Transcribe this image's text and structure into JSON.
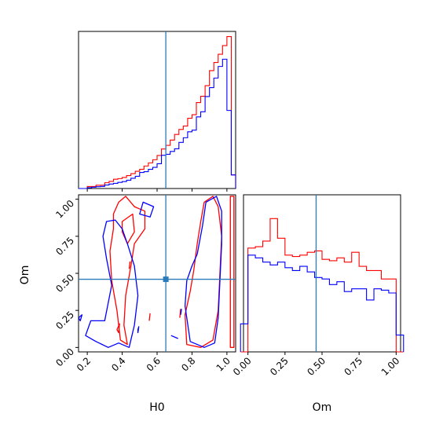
{
  "chart_data": {
    "type": "corner",
    "parameters": [
      "H0",
      "Om"
    ],
    "truth": {
      "H0": 0.65,
      "Om": 0.46
    },
    "colors": {
      "series_a": "#ff0000",
      "series_b": "#0000ff",
      "truth": "#2b7bba"
    },
    "axes": {
      "H0": {
        "label": "H0",
        "range": [
          0.15,
          1.05
        ],
        "ticks": [
          "0.2",
          "0.4",
          "0.6",
          "0.8",
          "1.0"
        ],
        "tick_values": [
          0.2,
          0.4,
          0.6,
          0.8,
          1.0
        ]
      },
      "Om": {
        "label": "Om",
        "range": [
          -0.03,
          1.03
        ],
        "ticks": [
          "0.00",
          "0.25",
          "0.50",
          "0.75",
          "1.00"
        ],
        "tick_values": [
          0.0,
          0.25,
          0.5,
          0.75,
          1.0
        ]
      }
    },
    "hist_H0": {
      "bin_edges": [
        0.15,
        0.175,
        0.2,
        0.225,
        0.25,
        0.275,
        0.3,
        0.325,
        0.35,
        0.375,
        0.4,
        0.425,
        0.45,
        0.475,
        0.5,
        0.525,
        0.55,
        0.575,
        0.6,
        0.625,
        0.65,
        0.675,
        0.7,
        0.725,
        0.75,
        0.775,
        0.8,
        0.825,
        0.85,
        0.875,
        0.9,
        0.925,
        0.95,
        0.975,
        1.0,
        1.025,
        1.05
      ],
      "series": [
        {
          "values": [
            0,
            0,
            0.012,
            0.012,
            0.02,
            0.02,
            0.035,
            0.043,
            0.056,
            0.06,
            0.067,
            0.078,
            0.09,
            0.104,
            0.116,
            0.136,
            0.155,
            0.174,
            0.2,
            0.239,
            0.261,
            0.293,
            0.327,
            0.357,
            0.378,
            0.425,
            0.446,
            0.52,
            0.558,
            0.622,
            0.713,
            0.762,
            0.812,
            0.864,
            0.919,
            0.082
          ]
        },
        {
          "values": [
            0,
            0,
            0.005,
            0.008,
            0.011,
            0.013,
            0.021,
            0.027,
            0.031,
            0.037,
            0.042,
            0.05,
            0.062,
            0.074,
            0.097,
            0.102,
            0.116,
            0.128,
            0.15,
            0.201,
            0.207,
            0.224,
            0.24,
            0.279,
            0.307,
            0.343,
            0.353,
            0.433,
            0.464,
            0.556,
            0.61,
            0.668,
            0.738,
            0.782,
            0.472,
            0.082
          ]
        }
      ]
    },
    "hist_Om": {
      "bin_edges": [
        -0.05,
        0.0,
        0.05,
        0.1,
        0.15,
        0.2,
        0.25,
        0.3,
        0.35,
        0.4,
        0.45,
        0.5,
        0.55,
        0.6,
        0.65,
        0.7,
        0.75,
        0.8,
        0.85,
        0.9,
        0.95,
        1.0,
        1.05
      ],
      "series": [
        {
          "values": [
            0,
            0.74,
            0.75,
            0.79,
            0.95,
            0.81,
            0.69,
            0.68,
            0.69,
            0.71,
            0.72,
            0.66,
            0.65,
            0.67,
            0.64,
            0.71,
            0.61,
            0.58,
            0.58,
            0.52,
            0.52,
            0
          ]
        },
        {
          "values": [
            0.2,
            0.69,
            0.67,
            0.64,
            0.62,
            0.64,
            0.6,
            0.58,
            0.61,
            0.57,
            0.53,
            0.52,
            0.48,
            0.5,
            0.43,
            0.45,
            0.45,
            0.37,
            0.45,
            0.44,
            0.42,
            0.12
          ]
        }
      ]
    },
    "contours": [
      {
        "series": 0,
        "points": [
          [
            0.35,
            0.9
          ],
          [
            0.38,
            0.98
          ],
          [
            0.42,
            1.02
          ],
          [
            0.47,
            0.95
          ],
          [
            0.53,
            0.92
          ],
          [
            0.53,
            0.8
          ],
          [
            0.47,
            0.7
          ],
          [
            0.45,
            0.55
          ],
          [
            0.42,
            0.35
          ],
          [
            0.41,
            0.15
          ],
          [
            0.43,
            0.02
          ],
          [
            0.39,
            0.05
          ],
          [
            0.37,
            0.25
          ],
          [
            0.34,
            0.45
          ],
          [
            0.33,
            0.65
          ],
          [
            0.35,
            0.8
          ]
        ]
      },
      {
        "series": 0,
        "points": [
          [
            0.4,
            0.85
          ],
          [
            0.46,
            0.9
          ],
          [
            0.47,
            0.78
          ],
          [
            0.43,
            0.7
          ],
          [
            0.4,
            0.78
          ]
        ]
      },
      {
        "series": 0,
        "points": [
          [
            0.77,
            0.02
          ],
          [
            0.76,
            0.22
          ],
          [
            0.79,
            0.38
          ],
          [
            0.81,
            0.52
          ],
          [
            0.83,
            0.7
          ],
          [
            0.85,
            0.85
          ],
          [
            0.87,
            0.98
          ],
          [
            0.92,
            1.02
          ],
          [
            0.95,
            0.95
          ],
          [
            0.97,
            0.75
          ],
          [
            0.96,
            0.5
          ],
          [
            0.95,
            0.25
          ],
          [
            0.92,
            0.05
          ],
          [
            0.85,
            0.0
          ]
        ]
      },
      {
        "series": 0,
        "points": [
          [
            1.02,
            0.0
          ],
          [
            1.02,
            1.02
          ],
          [
            1.04,
            1.02
          ],
          [
            1.04,
            0.0
          ]
        ]
      },
      {
        "series": 0,
        "points": [
          [
            0.555,
            0.18
          ],
          [
            0.56,
            0.23
          ]
        ]
      },
      {
        "series": 0,
        "points": [
          [
            0.73,
            0.2
          ],
          [
            0.735,
            0.26
          ]
        ]
      },
      {
        "series": 0,
        "points": [
          [
            0.37,
            0.12
          ],
          [
            0.385,
            0.16
          ],
          [
            0.38,
            0.1
          ]
        ]
      },
      {
        "series": 0,
        "points": [
          [
            0.44,
            0.53
          ],
          [
            0.445,
            0.58
          ]
        ]
      },
      {
        "series": 1,
        "points": [
          [
            0.19,
            0.08
          ],
          [
            0.22,
            0.18
          ],
          [
            0.3,
            0.18
          ],
          [
            0.34,
            0.42
          ],
          [
            0.31,
            0.6
          ],
          [
            0.29,
            0.75
          ],
          [
            0.31,
            0.85
          ],
          [
            0.36,
            0.86
          ],
          [
            0.4,
            0.8
          ],
          [
            0.43,
            0.7
          ],
          [
            0.47,
            0.55
          ],
          [
            0.49,
            0.35
          ],
          [
            0.47,
            0.15
          ],
          [
            0.44,
            0.0
          ],
          [
            0.38,
            0.03
          ],
          [
            0.32,
            0.0
          ],
          [
            0.25,
            0.04
          ]
        ]
      },
      {
        "series": 1,
        "points": [
          [
            0.52,
            0.98
          ],
          [
            0.58,
            0.95
          ],
          [
            0.56,
            0.88
          ],
          [
            0.5,
            0.9
          ]
        ]
      },
      {
        "series": 1,
        "points": [
          [
            0.79,
            0.04
          ],
          [
            0.76,
            0.28
          ],
          [
            0.77,
            0.45
          ],
          [
            0.8,
            0.55
          ],
          [
            0.83,
            0.63
          ],
          [
            0.86,
            0.82
          ],
          [
            0.88,
            0.98
          ],
          [
            0.94,
            1.02
          ],
          [
            0.97,
            0.92
          ],
          [
            0.97,
            0.7
          ],
          [
            0.96,
            0.45
          ],
          [
            0.95,
            0.2
          ],
          [
            0.93,
            0.03
          ],
          [
            0.87,
            0.0
          ]
        ]
      },
      {
        "series": 1,
        "points": [
          [
            0.15,
            0.2
          ],
          [
            0.17,
            0.22
          ],
          [
            0.16,
            0.18
          ]
        ]
      },
      {
        "series": 1,
        "points": [
          [
            0.49,
            0.1
          ],
          [
            0.495,
            0.14
          ],
          [
            0.49,
            0.12
          ]
        ]
      },
      {
        "series": 1,
        "points": [
          [
            0.68,
            0.08
          ],
          [
            0.72,
            0.06
          ]
        ]
      },
      {
        "series": 1,
        "points": [
          [
            0.735,
            0.22
          ],
          [
            0.74,
            0.26
          ]
        ]
      }
    ]
  }
}
